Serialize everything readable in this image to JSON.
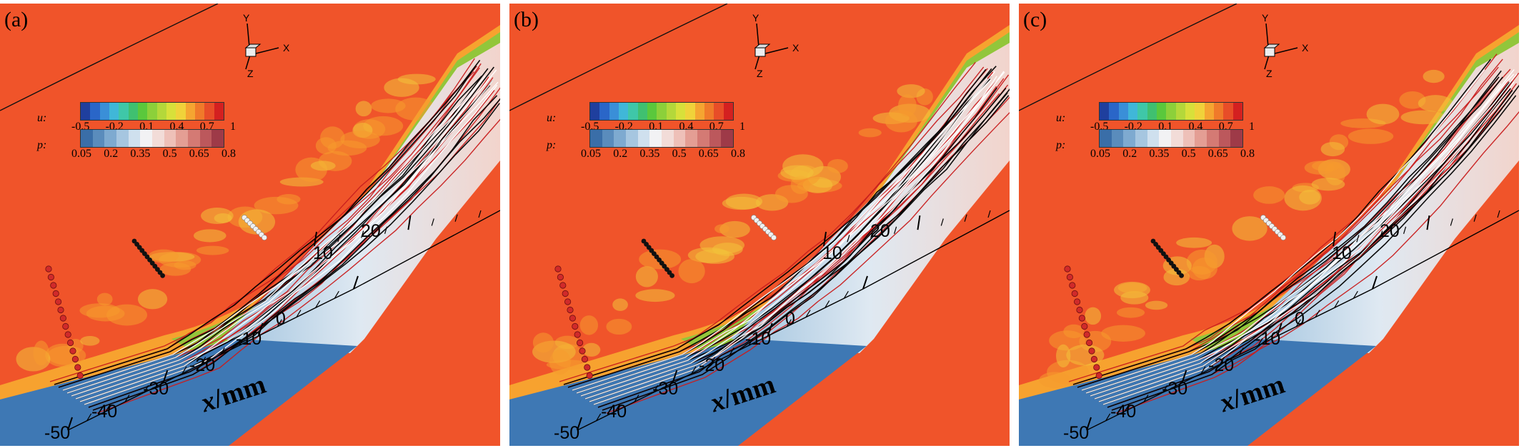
{
  "panels": [
    {
      "label": "(a)"
    },
    {
      "label": "(b)"
    },
    {
      "label": "(c)"
    }
  ],
  "colorbar_u": {
    "name": "u:",
    "ticks": [
      "-0.5",
      "-0.2",
      "0.1",
      "0.4",
      "0.7",
      "1"
    ],
    "colors": [
      "#1f3f9e",
      "#2a66c8",
      "#3a8fd8",
      "#40b7d8",
      "#3fc7a8",
      "#40c070",
      "#5ac83c",
      "#8cd03a",
      "#b4d83a",
      "#d8e03a",
      "#f0d23a",
      "#f5a531",
      "#f07a2a",
      "#e84d28",
      "#d42020"
    ]
  },
  "colorbar_p": {
    "name": "p:",
    "ticks": [
      "0.05",
      "0.2",
      "0.35",
      "0.5",
      "0.65",
      "0.8"
    ],
    "colors": [
      "#3a6ea8",
      "#5a8cbc",
      "#7eaad0",
      "#a6c6e0",
      "#cfe0ee",
      "#f2f2f4",
      "#f2dcd8",
      "#eec0b8",
      "#e49e94",
      "#d47a74",
      "#bc585c",
      "#9e3a48"
    ]
  },
  "triad": {
    "x": "X",
    "y": "Y",
    "z": "Z"
  },
  "x_axis": {
    "title_var": "x",
    "title_unit": "/mm",
    "ticks_lower": [
      "-50",
      "-40",
      "-30",
      "-20",
      "-10",
      "0"
    ],
    "ticks_upper": [
      "10",
      "20"
    ]
  },
  "colors": {
    "freestream": "#f0542a",
    "wall": "#3e78b4",
    "shear_green": "#8cc83c",
    "streamline_red": "#c81e1e",
    "streamline_black": "#000000",
    "streamline_white": "#ffffff"
  }
}
